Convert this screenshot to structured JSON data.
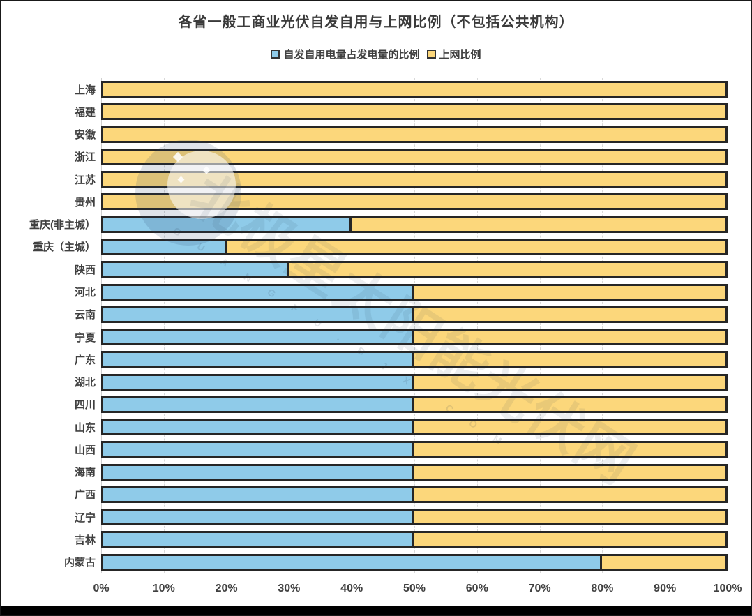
{
  "chart_data": {
    "type": "bar",
    "orientation": "horizontal",
    "stacked": true,
    "title": "各省一般工商业光伏自发自用与上网比例（不包括公共机构）",
    "categories": [
      "上海",
      "福建",
      "安徽",
      "浙江",
      "江苏",
      "贵州",
      "重庆(非主城）",
      "重庆（主城）",
      "陕西",
      "河北",
      "云南",
      "宁夏",
      "广东",
      "湖北",
      "四川",
      "山东",
      "山西",
      "海南",
      "广西",
      "辽宁",
      "吉林",
      "内蒙古"
    ],
    "series": [
      {
        "name": "自发自用电量占发电量的比例",
        "color": "#8FCBE9",
        "values": [
          0,
          0,
          0,
          0,
          0,
          0,
          40,
          20,
          30,
          50,
          50,
          50,
          50,
          50,
          50,
          50,
          50,
          50,
          50,
          50,
          50,
          80
        ]
      },
      {
        "name": "上网比例",
        "color": "#FCD77B",
        "values": [
          100,
          100,
          100,
          100,
          100,
          100,
          60,
          80,
          70,
          50,
          50,
          50,
          50,
          50,
          50,
          50,
          50,
          50,
          50,
          50,
          50,
          20
        ]
      }
    ],
    "value_unit": "%",
    "xlim": [
      0,
      100
    ],
    "x_ticks": [
      "0%",
      "10%",
      "20%",
      "30%",
      "40%",
      "50%",
      "60%",
      "70%",
      "80%",
      "90%",
      "100%"
    ],
    "grid": "vertical-dashed",
    "legend_position": "top"
  },
  "styles": {
    "bar_border": "#262626",
    "grid_line": "#D9D9D9",
    "axis_text": "#404040",
    "title_color": "#3A3A3A",
    "bottom_bar": "#000000"
  },
  "watermark": {
    "text": "北极星太阳能光伏网",
    "subtext": "GUANGFU.BJX.COM"
  }
}
